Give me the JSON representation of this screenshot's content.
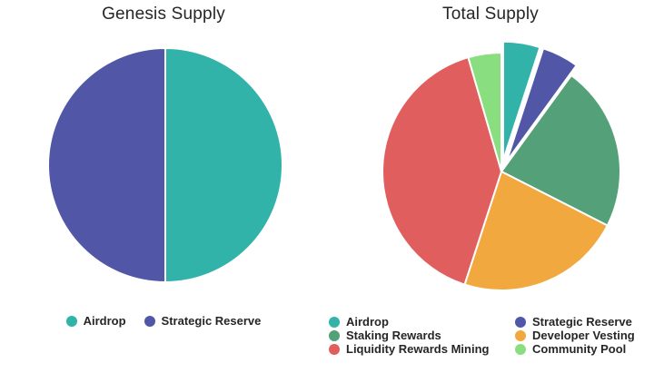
{
  "figure": {
    "background_color": "#ffffff",
    "text_color": "#262626"
  },
  "chart_data": [
    {
      "type": "pie",
      "title": "Genesis Supply",
      "labels": [
        "Airdrop",
        "Strategic Reserve"
      ],
      "values": [
        50,
        50
      ],
      "unit": "percent",
      "colors": [
        "#31b3a9",
        "#5157a6"
      ],
      "slice_pulls": [
        0,
        0
      ],
      "start_angle_deg": 0,
      "direction": "clockwise",
      "slice_border_color": "#ffffff",
      "legend": {
        "position": "bottom",
        "columns": 1
      }
    },
    {
      "type": "pie",
      "title": "Total Supply",
      "labels": [
        "Airdrop",
        "Strategic Reserve",
        "Staking Rewards",
        "Developer Vesting",
        "Liquidity Rewards Mining",
        "Community Pool"
      ],
      "values": [
        5,
        5,
        22.5,
        22.5,
        40.5,
        4.5
      ],
      "unit": "percent",
      "colors": [
        "#31b3a9",
        "#5157a6",
        "#54a078",
        "#f1a83e",
        "#e05e5e",
        "#89de7f"
      ],
      "slice_pulls": [
        0.095,
        0.095,
        0,
        0,
        0,
        0
      ],
      "start_angle_deg": 0,
      "direction": "clockwise",
      "slice_border_color": "#ffffff",
      "legend": {
        "position": "bottom",
        "columns": 2
      }
    }
  ]
}
